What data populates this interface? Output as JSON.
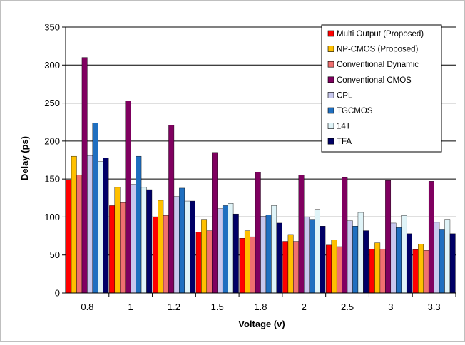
{
  "chart_data": {
    "type": "bar",
    "title": "",
    "xlabel": "Voltage (v)",
    "ylabel": "Delay (ps)",
    "ylim": [
      0,
      350
    ],
    "yticks": [
      0,
      50,
      100,
      150,
      200,
      250,
      300,
      350
    ],
    "grid": true,
    "legend_position": "top-right",
    "categories": [
      "0.8",
      "1",
      "1.2",
      "1.5",
      "1.8",
      "2",
      "2.5",
      "3",
      "3.3"
    ],
    "series": [
      {
        "name": "Multi Output (Proposed)",
        "color": "#ff0000",
        "values": [
          149,
          115,
          100,
          80,
          72,
          68,
          63,
          58,
          57
        ]
      },
      {
        "name": "NP-CMOS (Proposed)",
        "color": "#ffc000",
        "values": [
          180,
          139,
          122,
          97,
          82,
          77,
          70,
          66,
          64
        ]
      },
      {
        "name": "Conventional Dynamic",
        "color": "#f07070",
        "values": [
          155,
          119,
          102,
          82,
          74,
          68,
          61,
          58,
          56
        ]
      },
      {
        "name": "Conventional CMOS",
        "color": "#800060",
        "values": [
          310,
          253,
          221,
          185,
          159,
          155,
          152,
          148,
          147
        ]
      },
      {
        "name": "CPL",
        "color": "#c8c8ee",
        "values": [
          181,
          143,
          127,
          111,
          101,
          100,
          95,
          92,
          93
        ]
      },
      {
        "name": "TGCMOS",
        "color": "#1f6fc0",
        "values": [
          224,
          180,
          138,
          115,
          103,
          97,
          88,
          86,
          84
        ]
      },
      {
        "name": "14T",
        "color": "#e0f4f8",
        "values": [
          173,
          139,
          121,
          118,
          115,
          110,
          106,
          102,
          97
        ]
      },
      {
        "name": "TFA",
        "color": "#000066",
        "values": [
          178,
          136,
          121,
          104,
          92,
          88,
          82,
          78,
          78
        ]
      }
    ]
  }
}
